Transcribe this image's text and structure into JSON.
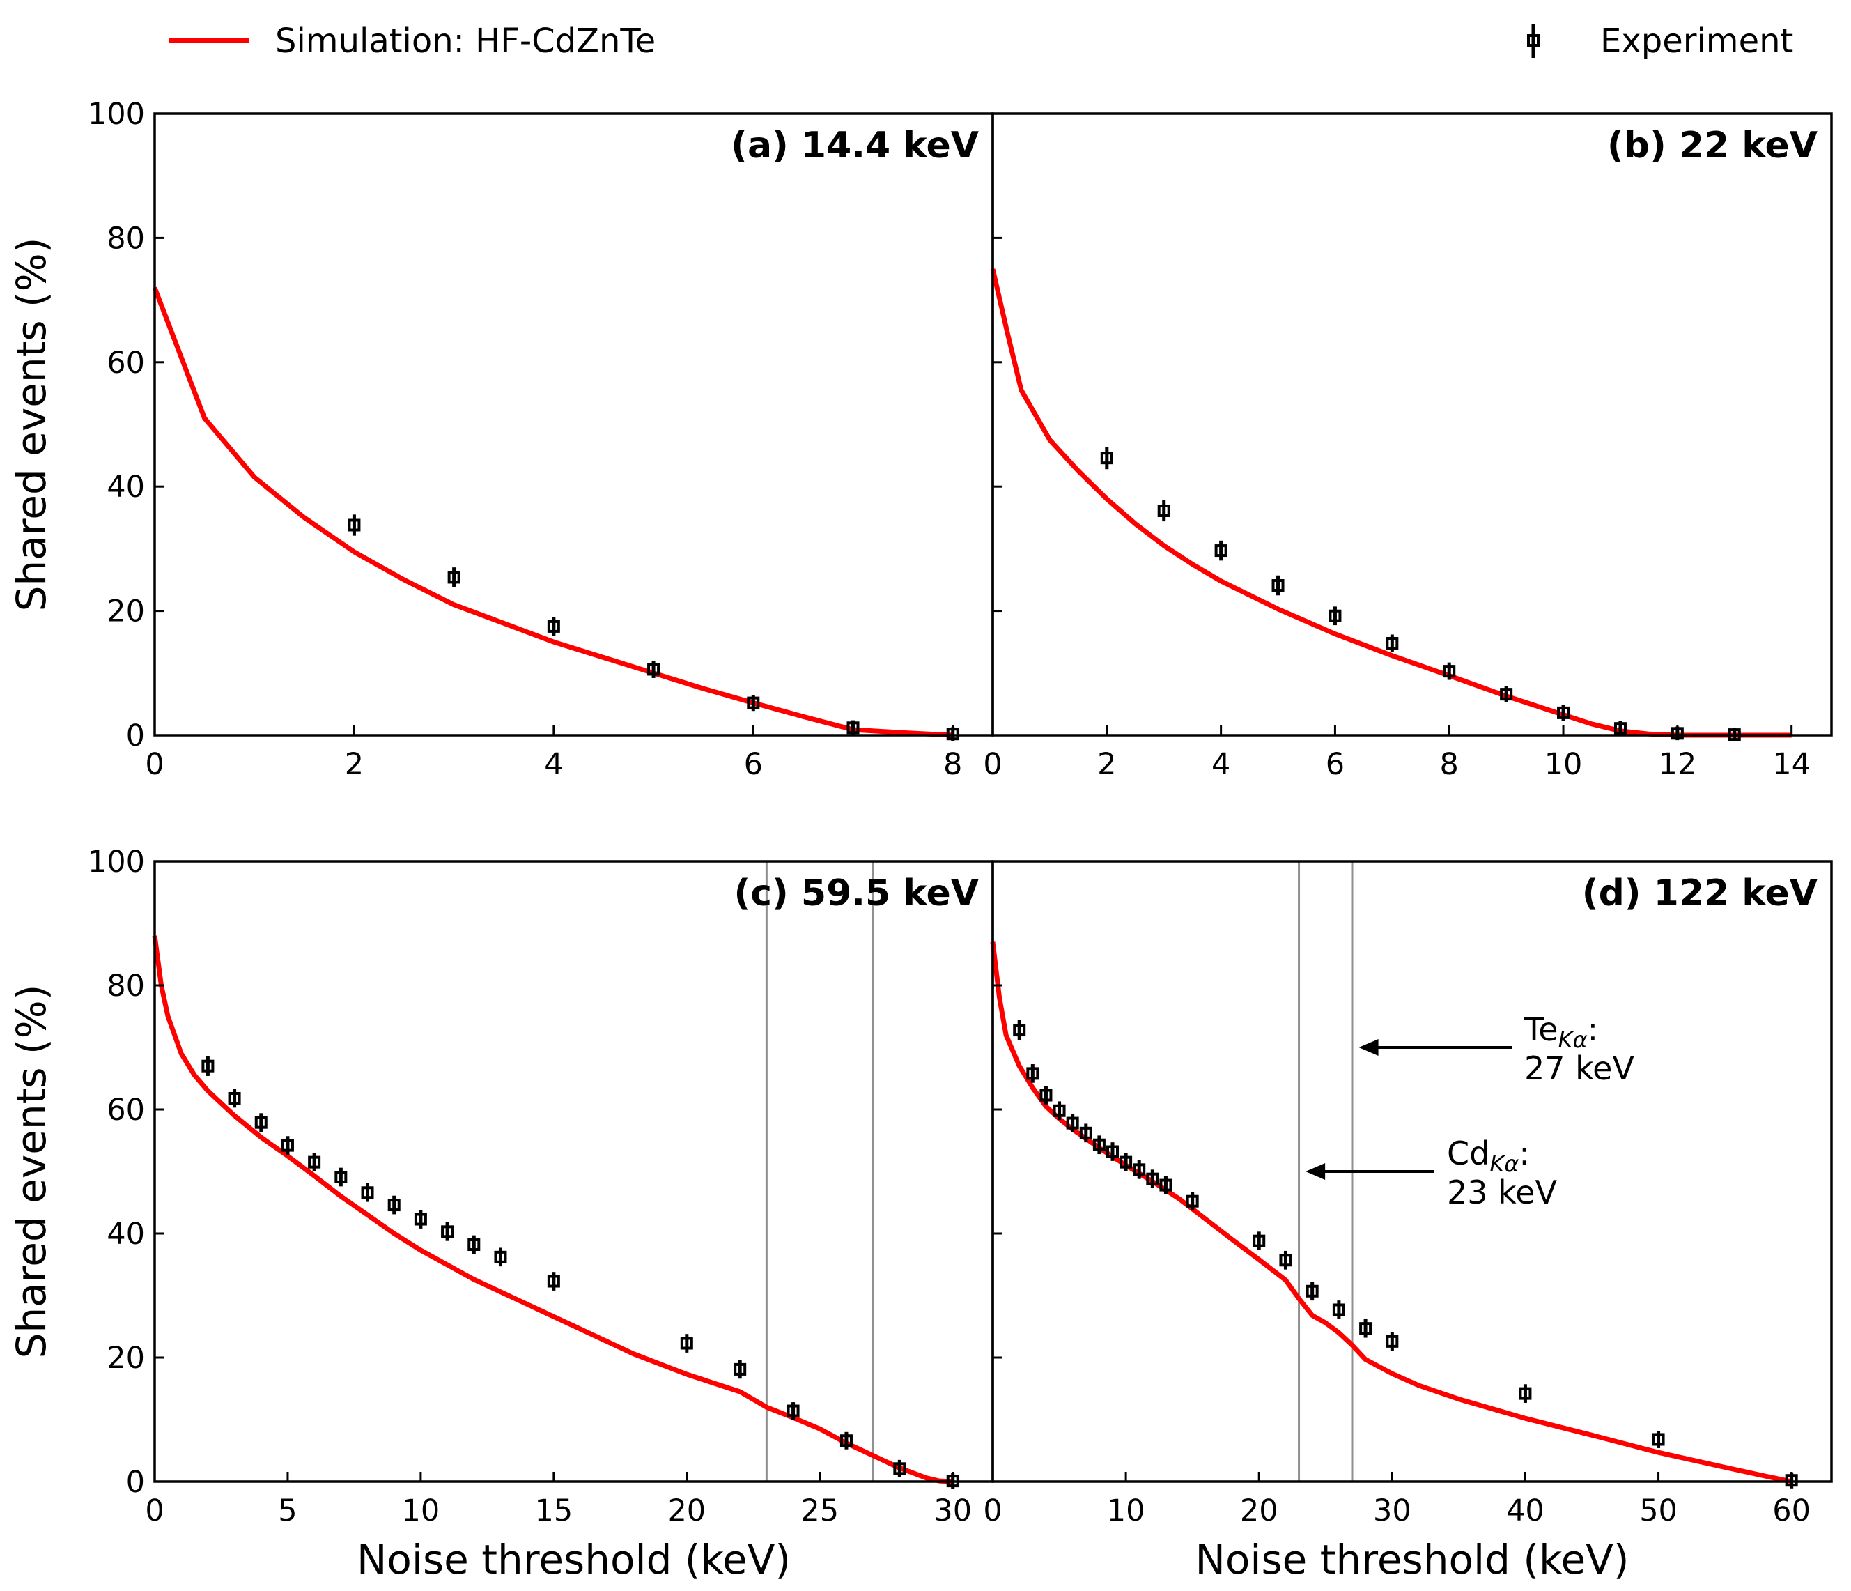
{
  "legend": {
    "simulation": "Simulation: HF-CdZnTe",
    "experiment": "Experiment"
  },
  "colors": {
    "simulation": "#ff0000",
    "experiment": "#000000",
    "vline": "#909090"
  },
  "chart_data": [
    {
      "type": "line",
      "title": "(a) 14.4 keV",
      "xlabel": "",
      "ylabel": "Shared events (%)",
      "xlim": [
        0,
        8.4
      ],
      "ylim": [
        0,
        100
      ],
      "xticks": [
        0,
        2,
        4,
        6,
        8
      ],
      "yticks": [
        0,
        20,
        40,
        60,
        80,
        100
      ],
      "series": [
        {
          "name": "Simulation: HF-CdZnTe",
          "x": [
            0,
            0.5,
            1,
            1.5,
            2,
            2.5,
            3,
            3.5,
            4,
            4.5,
            5,
            5.5,
            6,
            6.5,
            7,
            7.5,
            8
          ],
          "y": [
            72,
            51,
            41.5,
            35,
            29.5,
            25,
            21,
            18,
            15,
            12.5,
            10,
            7.5,
            5.2,
            3,
            0.9,
            0.4,
            0
          ]
        },
        {
          "name": "Experiment",
          "x": [
            2,
            3,
            4,
            5,
            6,
            7,
            8
          ],
          "y": [
            33.8,
            25.4,
            17.5,
            10.6,
            5.2,
            1.2,
            0.2
          ],
          "yerr": [
            1.7,
            1.6,
            1.5,
            1.4,
            1.3,
            1.2,
            1.1
          ]
        }
      ],
      "vlines": [],
      "annotations": []
    },
    {
      "type": "line",
      "title": "(b) 22 keV",
      "xlabel": "",
      "ylabel": "",
      "xlim": [
        0,
        14.7
      ],
      "ylim": [
        0,
        100
      ],
      "xticks": [
        0,
        2,
        4,
        6,
        8,
        10,
        12,
        14
      ],
      "yticks": [
        0,
        20,
        40,
        60,
        80,
        100
      ],
      "series": [
        {
          "name": "Simulation: HF-CdZnTe",
          "x": [
            0,
            0.25,
            0.5,
            1,
            1.5,
            2,
            2.5,
            3,
            3.5,
            4,
            5,
            6,
            7,
            8,
            9,
            10,
            10.5,
            11,
            11.5,
            12,
            13,
            14
          ],
          "y": [
            75,
            65,
            55.5,
            47.5,
            42.5,
            38,
            34,
            30.5,
            27.5,
            24.8,
            20.3,
            16.3,
            12.8,
            9.6,
            6.3,
            3.3,
            1.8,
            0.7,
            0.2,
            0,
            0,
            0
          ]
        },
        {
          "name": "Experiment",
          "x": [
            2,
            3,
            4,
            5,
            6,
            7,
            8,
            9,
            10,
            11,
            12,
            13
          ],
          "y": [
            44.6,
            36.1,
            29.7,
            24.1,
            19.2,
            14.8,
            10.3,
            6.6,
            3.6,
            1.1,
            0.3,
            0.1
          ],
          "yerr": [
            1.8,
            1.7,
            1.6,
            1.6,
            1.5,
            1.4,
            1.4,
            1.3,
            1.3,
            1.2,
            1.1,
            1.1
          ]
        }
      ],
      "vlines": [],
      "annotations": []
    },
    {
      "type": "line",
      "title": "(c) 59.5 keV",
      "xlabel": "Noise threshold (keV)",
      "ylabel": "Shared events (%)",
      "xlim": [
        0,
        31.5
      ],
      "ylim": [
        0,
        100
      ],
      "xticks": [
        0,
        5,
        10,
        15,
        20,
        25,
        30
      ],
      "yticks": [
        0,
        20,
        40,
        60,
        80,
        100
      ],
      "series": [
        {
          "name": "Simulation: HF-CdZnTe",
          "x": [
            0,
            0.25,
            0.5,
            1,
            1.5,
            2,
            3,
            4,
            5,
            6,
            7,
            8,
            9,
            10,
            12,
            14,
            16,
            18,
            20,
            22,
            23,
            24,
            25,
            26,
            27,
            28,
            29,
            29.5,
            30
          ],
          "y": [
            88,
            80,
            75,
            69,
            65.5,
            63,
            59,
            55.5,
            52.5,
            49.3,
            46,
            43,
            40,
            37.3,
            32.6,
            28.6,
            24.6,
            20.6,
            17.3,
            14.5,
            12,
            10.3,
            8.5,
            6.2,
            4.2,
            2.2,
            0.6,
            0.1,
            0
          ]
        },
        {
          "name": "Experiment",
          "x": [
            2,
            3,
            4,
            5,
            6,
            7,
            8,
            9,
            10,
            11,
            12,
            13,
            15,
            20,
            22,
            24,
            26,
            28,
            30
          ],
          "y": [
            67,
            61.8,
            57.9,
            54.2,
            51.5,
            49.1,
            46.6,
            44.6,
            42.3,
            40.3,
            38.2,
            36.2,
            32.3,
            22.3,
            18.1,
            11.4,
            6.6,
            2.1,
            0.1
          ],
          "yerr": [
            1.6,
            1.5,
            1.5,
            1.5,
            1.5,
            1.5,
            1.5,
            1.5,
            1.5,
            1.5,
            1.5,
            1.5,
            1.5,
            1.5,
            1.5,
            1.4,
            1.4,
            1.4,
            1.3
          ]
        }
      ],
      "vlines": [
        23,
        27
      ],
      "annotations": []
    },
    {
      "type": "line",
      "title": "(d) 122 keV",
      "xlabel": "Noise threshold (keV)",
      "ylabel": "",
      "xlim": [
        0,
        63
      ],
      "ylim": [
        0,
        100
      ],
      "xticks": [
        0,
        10,
        20,
        30,
        40,
        50,
        60
      ],
      "yticks": [
        0,
        20,
        40,
        60,
        80,
        100
      ],
      "series": [
        {
          "name": "Simulation: HF-CdZnTe",
          "x": [
            0,
            0.5,
            1,
            2,
            3,
            4,
            5,
            6,
            7,
            8,
            9,
            10,
            12,
            14,
            16,
            18,
            20,
            22,
            23,
            24,
            25,
            26,
            27,
            28,
            30,
            32,
            35,
            40,
            45,
            50,
            55,
            58,
            60
          ],
          "y": [
            87,
            78,
            72,
            67,
            63.5,
            60.5,
            58.5,
            56.8,
            55.3,
            53.8,
            52.4,
            51,
            48.4,
            45.6,
            42.3,
            39,
            35.8,
            32.5,
            29.5,
            26.8,
            25.6,
            24,
            22,
            19.7,
            17.4,
            15.5,
            13.3,
            10.2,
            7.5,
            4.7,
            2.3,
            0.9,
            0
          ]
        },
        {
          "name": "Experiment",
          "x": [
            2,
            3,
            4,
            5,
            6,
            7,
            8,
            9,
            10,
            11,
            12,
            13,
            15,
            20,
            22,
            24,
            26,
            28,
            30,
            40,
            50,
            60
          ],
          "y": [
            72.8,
            65.8,
            62.3,
            59.8,
            57.8,
            56.2,
            54.3,
            53.2,
            51.5,
            50.3,
            48.8,
            47.8,
            45.2,
            38.8,
            35.7,
            30.7,
            27.7,
            24.7,
            22.6,
            14.2,
            6.8,
            0.2
          ],
          "yerr": [
            1.6,
            1.5,
            1.5,
            1.5,
            1.5,
            1.5,
            1.5,
            1.5,
            1.5,
            1.5,
            1.5,
            1.5,
            1.5,
            1.5,
            1.5,
            1.5,
            1.5,
            1.5,
            1.5,
            1.5,
            1.4,
            1.3
          ]
        }
      ],
      "vlines": [
        23,
        27
      ],
      "annotations": [
        {
          "base": "Te",
          "sub": "Kα",
          "suffix": ":",
          "line2": "27 keV",
          "arrow_to": [
            27.5,
            70
          ]
        },
        {
          "base": "Cd",
          "sub": "Kα",
          "suffix": ":",
          "line2": "23 keV",
          "arrow_to": [
            23.5,
            50
          ]
        }
      ]
    }
  ]
}
